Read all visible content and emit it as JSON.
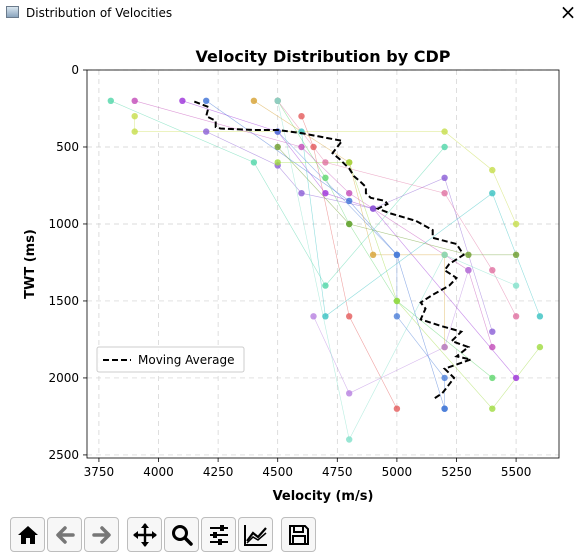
{
  "window": {
    "title": "Distribution of Velocities",
    "close_label": "×",
    "icon": "figure-window-icon"
  },
  "toolbar": {
    "buttons": [
      {
        "name": "home-button",
        "icon": "home-icon"
      },
      {
        "name": "back-button",
        "icon": "arrow-left-icon"
      },
      {
        "name": "forward-button",
        "icon": "arrow-right-icon"
      },
      {
        "name": "pan-button",
        "icon": "move-icon"
      },
      {
        "name": "zoom-button",
        "icon": "magnifier-icon"
      },
      {
        "name": "configure-subplots-button",
        "icon": "sliders-icon"
      },
      {
        "name": "edit-axis-button",
        "icon": "line-chart-icon"
      },
      {
        "name": "save-button",
        "icon": "floppy-disk-icon"
      }
    ]
  },
  "chart_data": {
    "type": "scatter",
    "title": "Velocity Distribution by CDP",
    "xlabel": "Velocity (m/s)",
    "ylabel": "TWT (ms)",
    "xlim": [
      3700,
      5680
    ],
    "ylim": [
      2520,
      0
    ],
    "xticks": [
      3750,
      4000,
      4250,
      4500,
      4750,
      5000,
      5250,
      5500
    ],
    "yticks": [
      0,
      500,
      1000,
      1500,
      2000,
      2500
    ],
    "x_tick_labels": [
      "3750",
      "4000",
      "4250",
      "4500",
      "4750",
      "5000",
      "5250",
      "5500"
    ],
    "y_tick_labels": [
      "0",
      "500",
      "1000",
      "1500",
      "2000",
      "2500"
    ],
    "grid": true,
    "legend": {
      "position": "lower-left",
      "entries": [
        {
          "label": "Moving Average",
          "style": "dashed",
          "color": "#000000"
        }
      ]
    },
    "series": [
      {
        "color": "#9b30d9",
        "points": [
          [
            4100,
            200
          ],
          [
            4500,
            400
          ],
          [
            4700,
            800
          ],
          [
            4900,
            900
          ],
          [
            5500,
            2000
          ]
        ]
      },
      {
        "color": "#3b6fd6",
        "points": [
          [
            4200,
            200
          ],
          [
            4800,
            850
          ],
          [
            5000,
            1200
          ],
          [
            5200,
            2200
          ]
        ]
      },
      {
        "color": "#4fd6a8",
        "points": [
          [
            3800,
            200
          ],
          [
            4400,
            600
          ],
          [
            4700,
            1400
          ],
          [
            5200,
            500
          ]
        ]
      },
      {
        "color": "#5cd66b",
        "points": [
          [
            4500,
            200
          ],
          [
            4700,
            700
          ],
          [
            4800,
            1000
          ],
          [
            5000,
            1500
          ],
          [
            5400,
            2000
          ]
        ]
      },
      {
        "color": "#e35a5a",
        "points": [
          [
            4600,
            300
          ],
          [
            4650,
            500
          ],
          [
            4800,
            1600
          ],
          [
            5000,
            2200
          ]
        ]
      },
      {
        "color": "#c6dd4a",
        "points": [
          [
            3900,
            300
          ],
          [
            3900,
            400
          ],
          [
            5200,
            400
          ],
          [
            5400,
            650
          ],
          [
            5500,
            1000
          ]
        ]
      },
      {
        "color": "#c24ab8",
        "points": [
          [
            3900,
            200
          ],
          [
            4600,
            500
          ],
          [
            4800,
            800
          ],
          [
            5300,
            1300
          ],
          [
            5400,
            1800
          ]
        ]
      },
      {
        "color": "#8a5cd6",
        "points": [
          [
            4200,
            400
          ],
          [
            4500,
            620
          ],
          [
            4600,
            800
          ],
          [
            4900,
            900
          ],
          [
            5200,
            700
          ],
          [
            5400,
            1700
          ]
        ]
      },
      {
        "color": "#e06fa0",
        "points": [
          [
            4500,
            200
          ],
          [
            4700,
            600
          ],
          [
            5200,
            800
          ],
          [
            5400,
            1300
          ],
          [
            5500,
            1600
          ]
        ]
      },
      {
        "color": "#d6a030",
        "points": [
          [
            4400,
            200
          ],
          [
            4800,
            600
          ],
          [
            4900,
            1200
          ],
          [
            5200,
            1200
          ],
          [
            5200,
            1800
          ]
        ]
      },
      {
        "color": "#6b9c2c",
        "points": [
          [
            4500,
            500
          ],
          [
            4800,
            1000
          ],
          [
            5300,
            1200
          ],
          [
            5500,
            1200
          ]
        ]
      },
      {
        "color": "#38c2c2",
        "points": [
          [
            4600,
            400
          ],
          [
            4700,
            1600
          ],
          [
            5400,
            800
          ],
          [
            5600,
            1600
          ]
        ]
      },
      {
        "color": "#9fdb3f",
        "points": [
          [
            4500,
            600
          ],
          [
            4800,
            600
          ],
          [
            5000,
            1500
          ],
          [
            5400,
            2200
          ],
          [
            5600,
            1800
          ]
        ]
      },
      {
        "color": "#b77fe0",
        "points": [
          [
            4650,
            1600
          ],
          [
            4800,
            2100
          ],
          [
            5200,
            1800
          ],
          [
            5300,
            1300
          ]
        ]
      },
      {
        "color": "#4b7ed8",
        "points": [
          [
            4500,
            400
          ],
          [
            5000,
            1200
          ],
          [
            5000,
            1600
          ],
          [
            5200,
            2000
          ],
          [
            5200,
            2200
          ]
        ]
      },
      {
        "color": "#7fe0c9",
        "points": [
          [
            4500,
            200
          ],
          [
            4800,
            2400
          ],
          [
            5200,
            1200
          ],
          [
            5500,
            1400
          ]
        ]
      }
    ],
    "moving_average": [
      [
        4150,
        205
      ],
      [
        4210,
        240
      ],
      [
        4200,
        300
      ],
      [
        4240,
        330
      ],
      [
        4240,
        370
      ],
      [
        4260,
        380
      ],
      [
        4400,
        390
      ],
      [
        4500,
        390
      ],
      [
        4600,
        410
      ],
      [
        4700,
        440
      ],
      [
        4770,
        460
      ],
      [
        4750,
        500
      ],
      [
        4730,
        540
      ],
      [
        4760,
        580
      ],
      [
        4800,
        640
      ],
      [
        4820,
        690
      ],
      [
        4850,
        730
      ],
      [
        4870,
        760
      ],
      [
        4870,
        800
      ],
      [
        4890,
        830
      ],
      [
        4950,
        850
      ],
      [
        4960,
        870
      ],
      [
        4920,
        900
      ],
      [
        4970,
        930
      ],
      [
        5080,
        980
      ],
      [
        5150,
        1040
      ],
      [
        5150,
        1090
      ],
      [
        5250,
        1130
      ],
      [
        5280,
        1200
      ],
      [
        5220,
        1260
      ],
      [
        5200,
        1300
      ],
      [
        5250,
        1350
      ],
      [
        5220,
        1400
      ],
      [
        5150,
        1460
      ],
      [
        5100,
        1510
      ],
      [
        5120,
        1550
      ],
      [
        5100,
        1620
      ],
      [
        5180,
        1660
      ],
      [
        5270,
        1700
      ],
      [
        5230,
        1760
      ],
      [
        5300,
        1800
      ],
      [
        5250,
        1860
      ],
      [
        5310,
        1880
      ],
      [
        5200,
        1940
      ],
      [
        5240,
        2000
      ],
      [
        5210,
        2060
      ],
      [
        5190,
        2100
      ],
      [
        5150,
        2140
      ]
    ]
  }
}
